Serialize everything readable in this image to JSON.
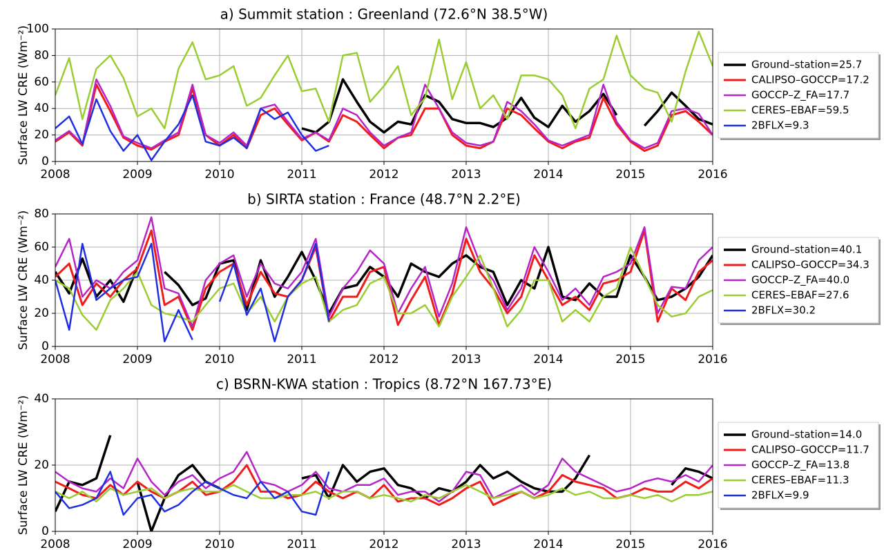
{
  "chart_data": [
    {
      "type": "line",
      "title": "a) Summit station : Greenland (72.6°N 38.5°W)",
      "y_label": "Surface LW CRE (Wm⁻²)",
      "xlim": [
        2008,
        2016
      ],
      "xticks": [
        2008,
        2009,
        2010,
        2011,
        2012,
        2013,
        2014,
        2015,
        2016
      ],
      "ylim": [
        0,
        100
      ],
      "yticks": [
        0,
        20,
        40,
        60,
        80,
        100
      ],
      "grid": true,
      "legend": "right",
      "x": [
        2008,
        2008.17,
        2008.33,
        2008.5,
        2008.67,
        2008.83,
        2009,
        2009.17,
        2009.33,
        2009.5,
        2009.67,
        2009.83,
        2010,
        2010.17,
        2010.33,
        2010.5,
        2010.67,
        2010.83,
        2011,
        2011.17,
        2011.33,
        2011.5,
        2011.67,
        2011.83,
        2012,
        2012.17,
        2012.33,
        2012.5,
        2012.67,
        2012.83,
        2013,
        2013.17,
        2013.33,
        2013.5,
        2013.67,
        2013.83,
        2014,
        2014.17,
        2014.33,
        2014.5,
        2014.67,
        2014.83,
        2015,
        2015.17,
        2015.33,
        2015.5,
        2015.67,
        2015.83,
        2016
      ],
      "series": [
        {
          "name": "Ground–station=25.7",
          "color": "#000000",
          "width": 3.5,
          "values": [
            null,
            null,
            null,
            null,
            null,
            null,
            null,
            null,
            null,
            null,
            null,
            null,
            null,
            null,
            null,
            null,
            null,
            null,
            25,
            22,
            30,
            62,
            45,
            30,
            22,
            30,
            28,
            50,
            45,
            32,
            29,
            29,
            26,
            33,
            48,
            33,
            26,
            42,
            30,
            38,
            51,
            35,
            null,
            27,
            38,
            52,
            42,
            32,
            28
          ]
        },
        {
          "name": "CALIPSO–GOCCP=17.2",
          "color": "#f21b1b",
          "width": 3,
          "values": [
            15,
            22,
            12,
            58,
            38,
            18,
            12,
            9,
            15,
            20,
            55,
            20,
            12,
            20,
            10,
            35,
            40,
            28,
            16,
            22,
            15,
            35,
            30,
            20,
            10,
            18,
            20,
            40,
            40,
            20,
            12,
            10,
            15,
            40,
            35,
            25,
            15,
            10,
            15,
            18,
            48,
            28,
            15,
            8,
            12,
            35,
            38,
            30,
            20
          ]
        },
        {
          "name": "GOCCP–Z_FA=17.7",
          "color": "#b624c9",
          "width": 2.5,
          "values": [
            16,
            23,
            13,
            62,
            42,
            19,
            14,
            10,
            16,
            22,
            58,
            20,
            14,
            22,
            12,
            40,
            43,
            30,
            17,
            22,
            16,
            40,
            35,
            22,
            12,
            18,
            22,
            58,
            40,
            22,
            14,
            12,
            15,
            45,
            38,
            28,
            16,
            12,
            16,
            20,
            58,
            30,
            16,
            10,
            14,
            38,
            40,
            36,
            20
          ]
        },
        {
          "name": "CERES–EBAF=59.5",
          "color": "#9acd32",
          "width": 2.5,
          "values": [
            50,
            78,
            32,
            70,
            80,
            63,
            34,
            40,
            25,
            70,
            90,
            62,
            65,
            72,
            42,
            48,
            65,
            80,
            53,
            55,
            30,
            80,
            82,
            45,
            57,
            72,
            35,
            48,
            92,
            47,
            75,
            40,
            50,
            32,
            65,
            65,
            62,
            50,
            25,
            55,
            62,
            95,
            65,
            55,
            52,
            30,
            68,
            98,
            72
          ]
        },
        {
          "name": "2BFLX=9.3",
          "color": "#1f2ee0",
          "width": 2.5,
          "values": [
            25,
            34,
            13,
            47,
            23,
            8,
            20,
            1,
            15,
            28,
            50,
            15,
            12,
            18,
            10,
            40,
            32,
            37,
            20,
            8,
            12,
            null,
            null,
            null,
            null,
            null,
            null,
            null,
            null,
            null,
            null,
            null,
            null,
            null,
            null,
            null,
            null,
            null,
            null,
            null,
            null,
            null,
            null,
            null,
            null,
            null,
            null,
            null,
            null
          ]
        }
      ]
    },
    {
      "type": "line",
      "title": "b) SIRTA station : France (48.7°N 2.2°E)",
      "y_label": "Surface LW CRE (Wm⁻²)",
      "xlim": [
        2008,
        2016
      ],
      "xticks": [
        2008,
        2009,
        2010,
        2011,
        2012,
        2013,
        2014,
        2015,
        2016
      ],
      "ylim": [
        0,
        80
      ],
      "yticks": [
        0,
        20,
        40,
        60,
        80
      ],
      "grid": true,
      "legend": "right",
      "x": [
        2008,
        2008.17,
        2008.33,
        2008.5,
        2008.67,
        2008.83,
        2009,
        2009.17,
        2009.33,
        2009.5,
        2009.67,
        2009.83,
        2010,
        2010.17,
        2010.33,
        2010.5,
        2010.67,
        2010.83,
        2011,
        2011.17,
        2011.33,
        2011.5,
        2011.67,
        2011.83,
        2012,
        2012.17,
        2012.33,
        2012.5,
        2012.67,
        2012.83,
        2013,
        2013.17,
        2013.33,
        2013.5,
        2013.67,
        2013.83,
        2014,
        2014.17,
        2014.33,
        2014.5,
        2014.67,
        2014.83,
        2015,
        2015.17,
        2015.33,
        2015.5,
        2015.67,
        2015.83,
        2016
      ],
      "series": [
        {
          "name": "Ground–station=40.1",
          "color": "#000000",
          "width": 3.5,
          "values": [
            45,
            32,
            53,
            30,
            40,
            27,
            48,
            null,
            45,
            37,
            25,
            29,
            50,
            52,
            22,
            52,
            30,
            42,
            57,
            40,
            20,
            35,
            37,
            48,
            42,
            30,
            50,
            45,
            42,
            50,
            55,
            48,
            45,
            25,
            40,
            35,
            60,
            30,
            28,
            38,
            30,
            30,
            55,
            42,
            28,
            30,
            35,
            42,
            55
          ]
        },
        {
          "name": "CALIPSO–GOCCP=34.3",
          "color": "#f21b1b",
          "width": 3,
          "values": [
            42,
            50,
            25,
            38,
            30,
            40,
            47,
            70,
            25,
            30,
            10,
            35,
            45,
            50,
            25,
            45,
            32,
            30,
            40,
            60,
            15,
            30,
            30,
            45,
            48,
            13,
            28,
            42,
            13,
            32,
            65,
            45,
            35,
            20,
            30,
            55,
            40,
            25,
            30,
            22,
            38,
            40,
            45,
            70,
            15,
            35,
            28,
            45,
            52
          ]
        },
        {
          "name": "GOCCP–Z_FA=40.0",
          "color": "#b624c9",
          "width": 2.5,
          "values": [
            48,
            65,
            30,
            40,
            35,
            45,
            52,
            78,
            35,
            32,
            12,
            40,
            50,
            55,
            30,
            50,
            38,
            35,
            45,
            65,
            18,
            35,
            45,
            58,
            50,
            20,
            35,
            48,
            18,
            38,
            72,
            50,
            40,
            22,
            35,
            60,
            45,
            28,
            35,
            25,
            42,
            45,
            50,
            72,
            20,
            36,
            35,
            52,
            60
          ]
        },
        {
          "name": "CERES–EBAF=27.6",
          "color": "#9acd32",
          "width": 2.5,
          "values": [
            40,
            35,
            19,
            10,
            28,
            35,
            45,
            25,
            20,
            18,
            15,
            25,
            35,
            38,
            20,
            30,
            15,
            30,
            38,
            42,
            15,
            22,
            25,
            38,
            42,
            20,
            20,
            25,
            12,
            30,
            42,
            55,
            35,
            12,
            22,
            40,
            40,
            15,
            22,
            15,
            30,
            35,
            60,
            42,
            25,
            18,
            20,
            30,
            34
          ]
        },
        {
          "name": "2BFLX=30.2",
          "color": "#1f2ee0",
          "width": 2.5,
          "values": [
            40,
            10,
            62,
            28,
            35,
            40,
            42,
            62,
            3,
            22,
            4,
            null,
            27,
            50,
            19,
            35,
            3,
            30,
            40,
            62,
            15,
            null,
            null,
            null,
            null,
            null,
            null,
            null,
            null,
            null,
            null,
            null,
            null,
            null,
            null,
            null,
            null,
            null,
            null,
            null,
            null,
            null,
            null,
            null,
            null,
            null,
            null,
            null,
            null
          ]
        }
      ]
    },
    {
      "type": "line",
      "title": "c) BSRN-KWA station : Tropics (8.72°N 167.73°E)",
      "y_label": "Surface LW CRE (Wm⁻²)",
      "xlim": [
        2008,
        2016
      ],
      "xticks": [
        2008,
        2009,
        2010,
        2011,
        2012,
        2013,
        2014,
        2015,
        2016
      ],
      "ylim": [
        0,
        40
      ],
      "yticks": [
        0,
        20,
        40
      ],
      "grid": true,
      "legend": "right",
      "x": [
        2008,
        2008.17,
        2008.33,
        2008.5,
        2008.67,
        2008.83,
        2009,
        2009.17,
        2009.33,
        2009.5,
        2009.67,
        2009.83,
        2010,
        2010.17,
        2010.33,
        2010.5,
        2010.67,
        2010.83,
        2011,
        2011.17,
        2011.33,
        2011.5,
        2011.67,
        2011.83,
        2012,
        2012.17,
        2012.33,
        2012.5,
        2012.67,
        2012.83,
        2013,
        2013.17,
        2013.33,
        2013.5,
        2013.67,
        2013.83,
        2014,
        2014.17,
        2014.33,
        2014.5,
        2014.67,
        2014.83,
        2015,
        2015.17,
        2015.33,
        2015.5,
        2015.67,
        2015.83,
        2016
      ],
      "series": [
        {
          "name": "Ground–station=14.0",
          "color": "#000000",
          "width": 3.5,
          "values": [
            6,
            15,
            14,
            16,
            29,
            null,
            15,
            0,
            10,
            17,
            20,
            15,
            13,
            null,
            null,
            null,
            null,
            null,
            16,
            17,
            10,
            20,
            15,
            18,
            19,
            14,
            13,
            10,
            13,
            12,
            15,
            20,
            16,
            18,
            15,
            13,
            12,
            12,
            16,
            23,
            null,
            null,
            null,
            null,
            null,
            14,
            19,
            18,
            16
          ]
        },
        {
          "name": "CALIPSO–GOCCP=11.7",
          "color": "#f21b1b",
          "width": 3,
          "values": [
            15,
            13,
            11,
            10,
            14,
            11,
            15,
            12,
            10,
            12,
            15,
            11,
            12,
            15,
            20,
            12,
            12,
            10,
            11,
            15,
            12,
            10,
            12,
            10,
            14,
            9,
            10,
            10,
            8,
            10,
            13,
            15,
            8,
            10,
            12,
            10,
            12,
            17,
            15,
            14,
            13,
            10,
            11,
            13,
            12,
            12,
            15,
            13,
            16
          ]
        },
        {
          "name": "GOCCP–Z_FA=13.8",
          "color": "#b624c9",
          "width": 2.5,
          "values": [
            18,
            15,
            13,
            12,
            16,
            13,
            22,
            15,
            11,
            15,
            17,
            13,
            16,
            18,
            24,
            15,
            14,
            12,
            14,
            18,
            13,
            12,
            14,
            14,
            16,
            11,
            12,
            12,
            9,
            12,
            18,
            17,
            10,
            12,
            14,
            11,
            14,
            22,
            18,
            16,
            14,
            12,
            13,
            15,
            16,
            15,
            17,
            15,
            20
          ]
        },
        {
          "name": "CERES–EBAF=11.3",
          "color": "#9acd32",
          "width": 2.5,
          "values": [
            12,
            10,
            12,
            9,
            13,
            11,
            12,
            13,
            10,
            12,
            13,
            12,
            12,
            14,
            12,
            10,
            10,
            11,
            11,
            12,
            10,
            12,
            12,
            10,
            11,
            10,
            9,
            11,
            10,
            12,
            14,
            12,
            10,
            11,
            12,
            10,
            11,
            13,
            11,
            12,
            10,
            10,
            11,
            10,
            11,
            9,
            11,
            11,
            12
          ]
        },
        {
          "name": "2BFLX=9.9",
          "color": "#1f2ee0",
          "width": 2.5,
          "values": [
            12,
            7,
            8,
            10,
            18,
            5,
            10,
            11,
            6,
            8,
            12,
            15,
            13,
            11,
            10,
            15,
            10,
            12,
            6,
            5,
            18,
            null,
            null,
            null,
            null,
            null,
            null,
            null,
            null,
            null,
            null,
            null,
            null,
            null,
            null,
            null,
            null,
            null,
            null,
            null,
            null,
            null,
            null,
            null,
            null,
            null,
            null,
            null,
            null
          ]
        }
      ]
    }
  ]
}
